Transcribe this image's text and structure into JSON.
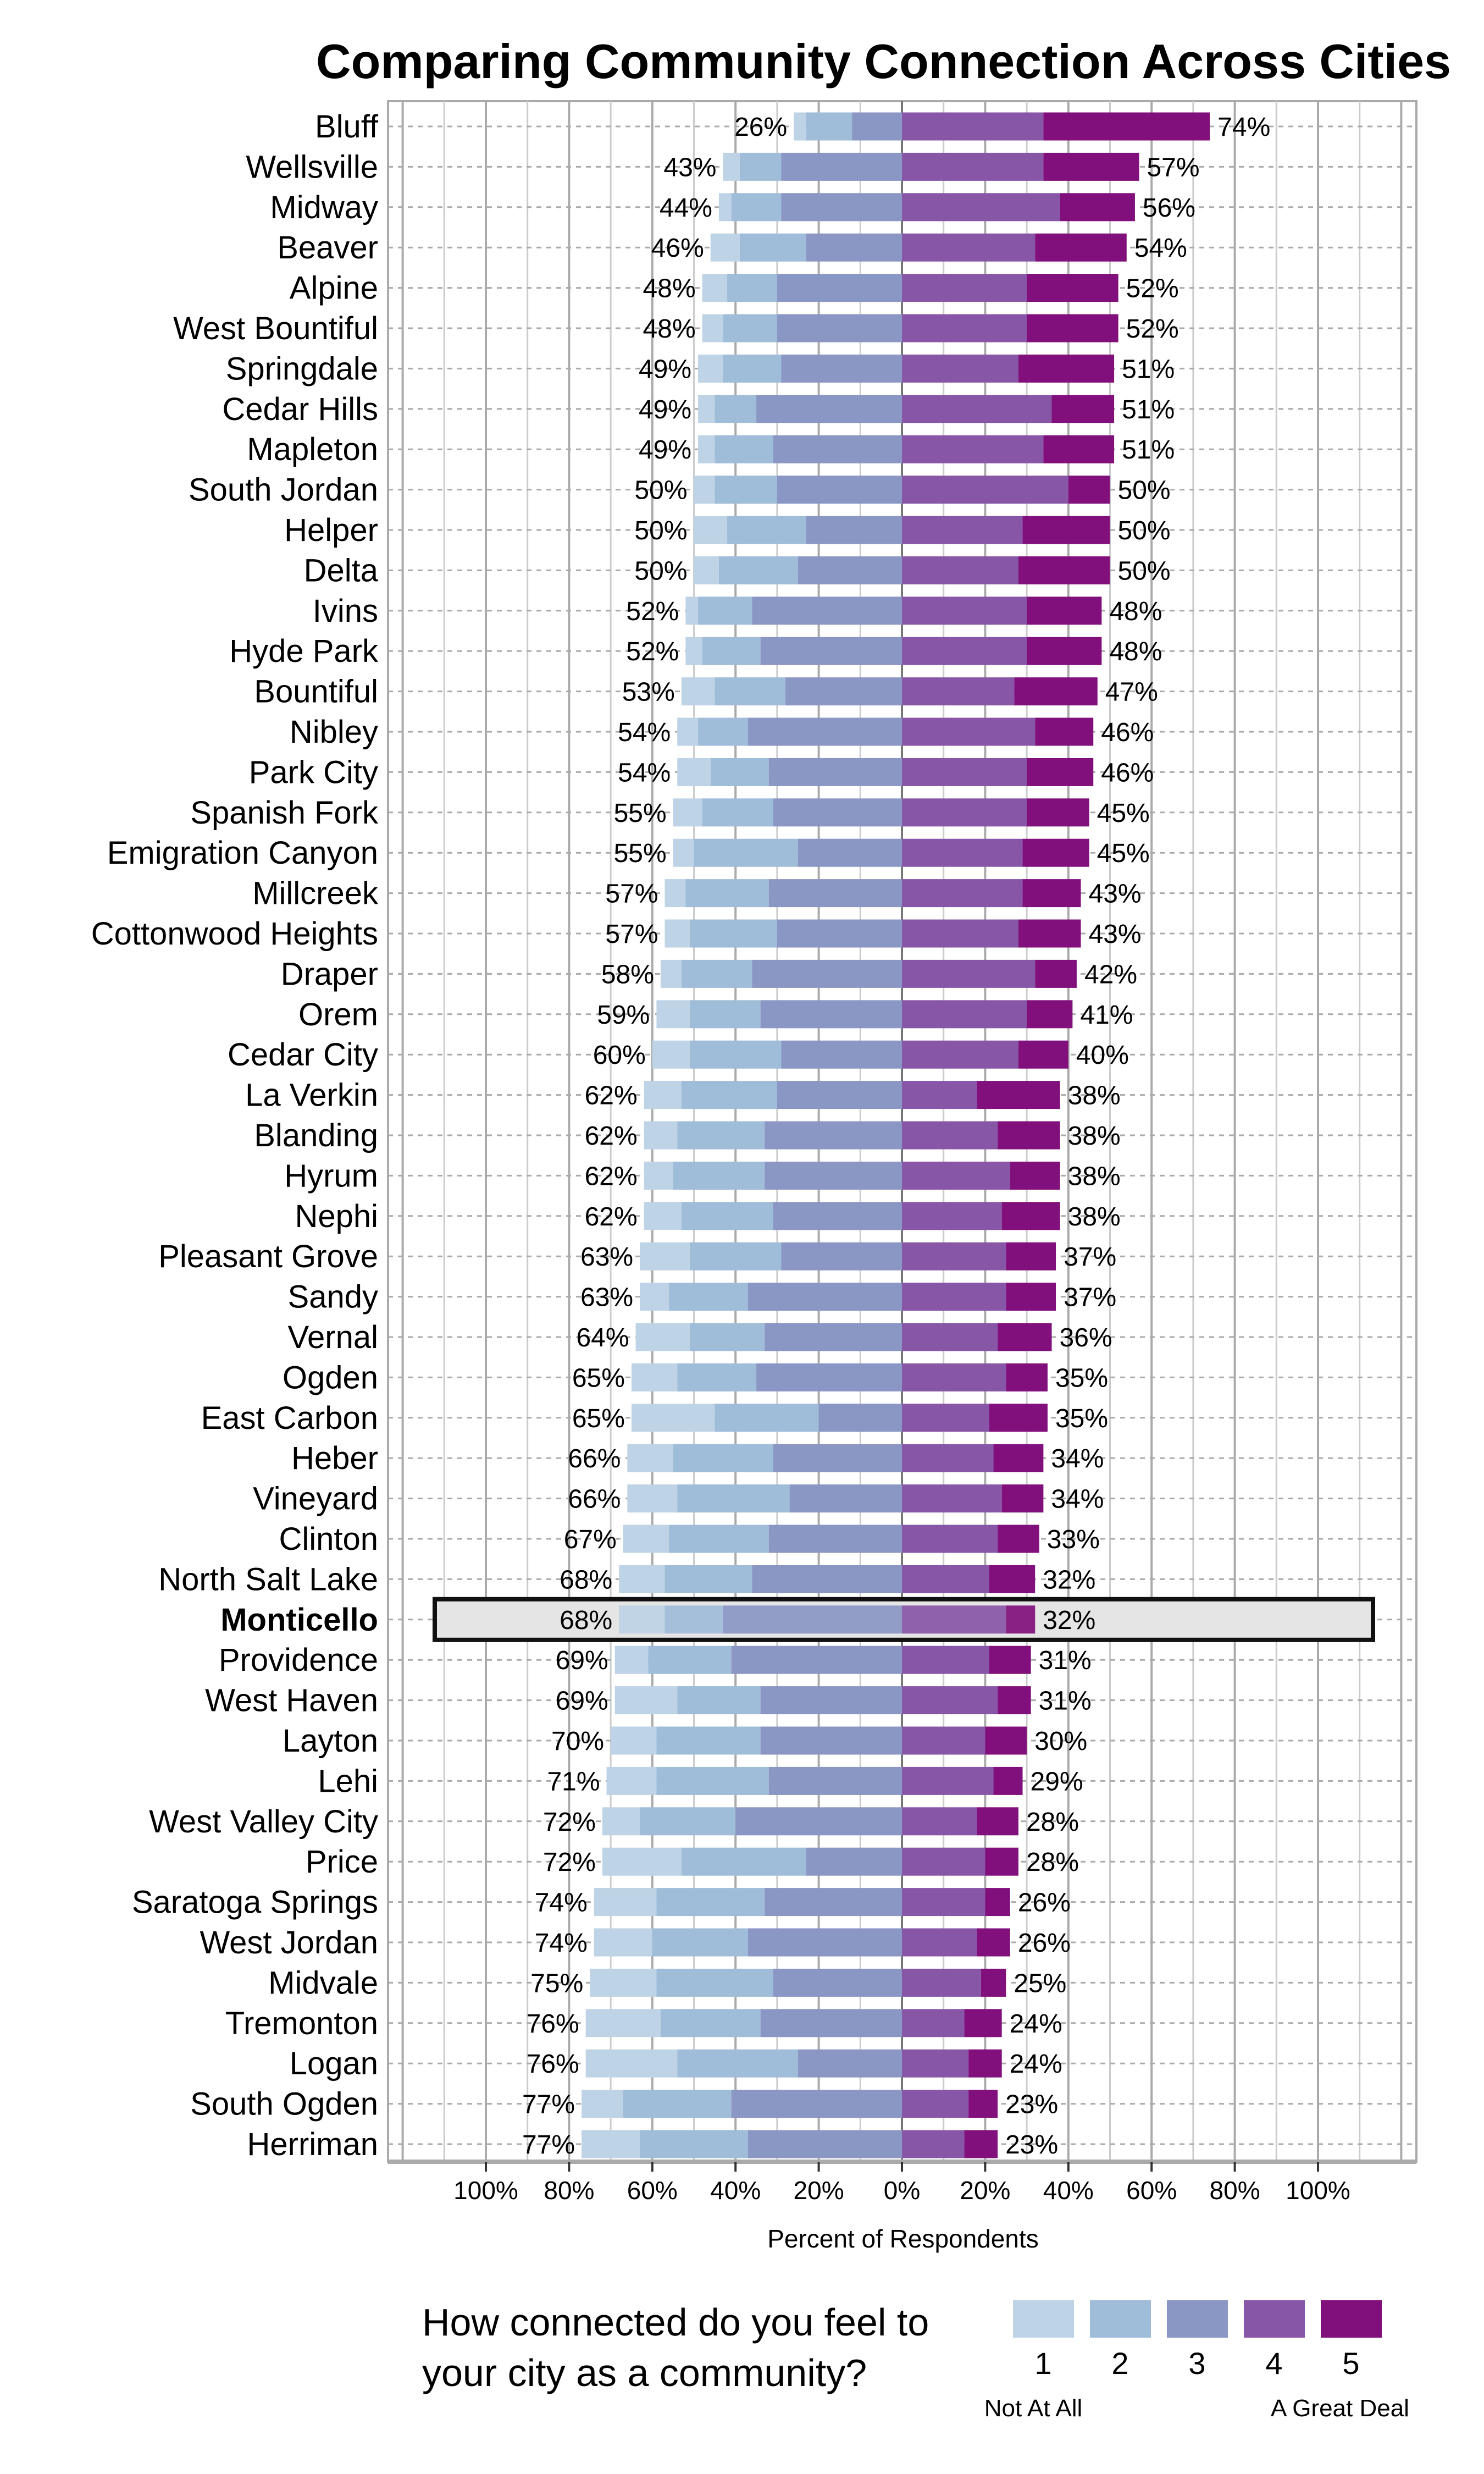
{
  "chart_data": {
    "type": "bar",
    "orientation": "horizontal-diverging-stacked",
    "title": "Comparing Community Connection Across Cities",
    "xlabel": "Percent of Respondents",
    "xlim": [
      -100,
      100
    ],
    "x_ticks": [
      "100%",
      "80%",
      "60%",
      "40%",
      "20%",
      "0%",
      "20%",
      "40%",
      "60%",
      "80%",
      "100%"
    ],
    "grid": true,
    "highlight_city": "Monticello",
    "legend": {
      "title_line1": "How connected do you feel to",
      "title_line2": "your city as a community?",
      "placement": "bottom",
      "entries": [
        "1",
        "2",
        "3",
        "4",
        "5"
      ],
      "low_anchor": "Not At All",
      "high_anchor": "A Great Deal"
    },
    "colors": [
      "#bed3e6",
      "#9fbcd9",
      "#8a96c4",
      "#8856a7",
      "#810f7c"
    ],
    "series_order": [
      "1",
      "2",
      "3",
      "4",
      "5"
    ],
    "rows": [
      {
        "city": "Bluff",
        "values": [
          3,
          11,
          12,
          34,
          40
        ],
        "left": "26%",
        "right": "74%"
      },
      {
        "city": "Wellsville",
        "values": [
          4,
          10,
          29,
          34,
          23
        ],
        "left": "43%",
        "right": "57%"
      },
      {
        "city": "Midway",
        "values": [
          3,
          12,
          29,
          38,
          18
        ],
        "left": "44%",
        "right": "56%"
      },
      {
        "city": "Beaver",
        "values": [
          7,
          16,
          23,
          32,
          22
        ],
        "left": "46%",
        "right": "54%"
      },
      {
        "city": "Alpine",
        "values": [
          6,
          12,
          30,
          30,
          22
        ],
        "left": "48%",
        "right": "52%"
      },
      {
        "city": "West Bountiful",
        "values": [
          5,
          13,
          30,
          30,
          22
        ],
        "left": "48%",
        "right": "52%"
      },
      {
        "city": "Springdale",
        "values": [
          6,
          14,
          29,
          28,
          23
        ],
        "left": "49%",
        "right": "51%"
      },
      {
        "city": "Cedar Hills",
        "values": [
          4,
          10,
          35,
          36,
          15
        ],
        "left": "49%",
        "right": "51%"
      },
      {
        "city": "Mapleton",
        "values": [
          4,
          14,
          31,
          34,
          17
        ],
        "left": "49%",
        "right": "51%"
      },
      {
        "city": "South Jordan",
        "values": [
          5,
          15,
          30,
          40,
          10
        ],
        "left": "50%",
        "right": "50%"
      },
      {
        "city": "Helper",
        "values": [
          8,
          19,
          23,
          29,
          21
        ],
        "left": "50%",
        "right": "50%"
      },
      {
        "city": "Delta",
        "values": [
          6,
          19,
          25,
          28,
          22
        ],
        "left": "50%",
        "right": "50%"
      },
      {
        "city": "Ivins",
        "values": [
          3,
          13,
          36,
          30,
          18
        ],
        "left": "52%",
        "right": "48%"
      },
      {
        "city": "Hyde Park",
        "values": [
          4,
          14,
          34,
          30,
          18
        ],
        "left": "52%",
        "right": "48%"
      },
      {
        "city": "Bountiful",
        "values": [
          8,
          17,
          28,
          27,
          20
        ],
        "left": "53%",
        "right": "47%"
      },
      {
        "city": "Nibley",
        "values": [
          5,
          12,
          37,
          32,
          14
        ],
        "left": "54%",
        "right": "46%"
      },
      {
        "city": "Park City",
        "values": [
          8,
          14,
          32,
          30,
          16
        ],
        "left": "54%",
        "right": "46%"
      },
      {
        "city": "Spanish Fork",
        "values": [
          7,
          17,
          31,
          30,
          15
        ],
        "left": "55%",
        "right": "45%"
      },
      {
        "city": "Emigration Canyon",
        "values": [
          5,
          25,
          25,
          29,
          16
        ],
        "left": "55%",
        "right": "45%"
      },
      {
        "city": "Millcreek",
        "values": [
          5,
          20,
          32,
          29,
          14
        ],
        "left": "57%",
        "right": "43%"
      },
      {
        "city": "Cottonwood Heights",
        "values": [
          6,
          21,
          30,
          28,
          15
        ],
        "left": "57%",
        "right": "43%"
      },
      {
        "city": "Draper",
        "values": [
          5,
          17,
          36,
          32,
          10
        ],
        "left": "58%",
        "right": "42%"
      },
      {
        "city": "Orem",
        "values": [
          8,
          17,
          34,
          30,
          11
        ],
        "left": "59%",
        "right": "41%"
      },
      {
        "city": "Cedar City",
        "values": [
          9,
          22,
          29,
          28,
          12
        ],
        "left": "60%",
        "right": "40%"
      },
      {
        "city": "La Verkin",
        "values": [
          9,
          23,
          30,
          18,
          20
        ],
        "left": "62%",
        "right": "38%"
      },
      {
        "city": "Blanding",
        "values": [
          8,
          21,
          33,
          23,
          15
        ],
        "left": "62%",
        "right": "38%"
      },
      {
        "city": "Hyrum",
        "values": [
          7,
          22,
          33,
          26,
          12
        ],
        "left": "62%",
        "right": "38%"
      },
      {
        "city": "Nephi",
        "values": [
          9,
          22,
          31,
          24,
          14
        ],
        "left": "62%",
        "right": "38%"
      },
      {
        "city": "Pleasant Grove",
        "values": [
          12,
          22,
          29,
          25,
          12
        ],
        "left": "63%",
        "right": "37%"
      },
      {
        "city": "Sandy",
        "values": [
          7,
          19,
          37,
          25,
          12
        ],
        "left": "63%",
        "right": "37%"
      },
      {
        "city": "Vernal",
        "values": [
          13,
          18,
          33,
          23,
          13
        ],
        "left": "64%",
        "right": "36%"
      },
      {
        "city": "Ogden",
        "values": [
          11,
          19,
          35,
          25,
          10
        ],
        "left": "65%",
        "right": "35%"
      },
      {
        "city": "East Carbon",
        "values": [
          20,
          25,
          20,
          21,
          14
        ],
        "left": "65%",
        "right": "35%"
      },
      {
        "city": "Heber",
        "values": [
          11,
          24,
          31,
          22,
          12
        ],
        "left": "66%",
        "right": "34%"
      },
      {
        "city": "Vineyard",
        "values": [
          12,
          27,
          27,
          24,
          10
        ],
        "left": "66%",
        "right": "34%"
      },
      {
        "city": "Clinton",
        "values": [
          11,
          24,
          32,
          23,
          10
        ],
        "left": "67%",
        "right": "33%"
      },
      {
        "city": "North Salt Lake",
        "values": [
          11,
          21,
          36,
          21,
          11
        ],
        "left": "68%",
        "right": "32%"
      },
      {
        "city": "Monticello",
        "values": [
          11,
          14,
          43,
          25,
          7
        ],
        "left": "68%",
        "right": "32%"
      },
      {
        "city": "Providence",
        "values": [
          8,
          20,
          41,
          21,
          10
        ],
        "left": "69%",
        "right": "31%"
      },
      {
        "city": "West Haven",
        "values": [
          15,
          20,
          34,
          23,
          8
        ],
        "left": "69%",
        "right": "31%"
      },
      {
        "city": "Layton",
        "values": [
          11,
          25,
          34,
          20,
          10
        ],
        "left": "70%",
        "right": "30%"
      },
      {
        "city": "Lehi",
        "values": [
          12,
          27,
          32,
          22,
          7
        ],
        "left": "71%",
        "right": "29%"
      },
      {
        "city": "West Valley City",
        "values": [
          9,
          23,
          40,
          18,
          10
        ],
        "left": "72%",
        "right": "28%"
      },
      {
        "city": "Price",
        "values": [
          19,
          30,
          23,
          20,
          8
        ],
        "left": "72%",
        "right": "28%"
      },
      {
        "city": "Saratoga Springs",
        "values": [
          15,
          26,
          33,
          20,
          6
        ],
        "left": "74%",
        "right": "26%"
      },
      {
        "city": "West Jordan",
        "values": [
          14,
          23,
          37,
          18,
          8
        ],
        "left": "74%",
        "right": "26%"
      },
      {
        "city": "Midvale",
        "values": [
          16,
          28,
          31,
          19,
          6
        ],
        "left": "75%",
        "right": "25%"
      },
      {
        "city": "Tremonton",
        "values": [
          18,
          24,
          34,
          15,
          9
        ],
        "left": "76%",
        "right": "24%"
      },
      {
        "city": "Logan",
        "values": [
          22,
          29,
          25,
          16,
          8
        ],
        "left": "76%",
        "right": "24%"
      },
      {
        "city": "South Ogden",
        "values": [
          10,
          26,
          41,
          16,
          7
        ],
        "left": "77%",
        "right": "23%"
      },
      {
        "city": "Herriman",
        "values": [
          14,
          26,
          37,
          15,
          8
        ],
        "left": "77%",
        "right": "23%"
      }
    ]
  }
}
